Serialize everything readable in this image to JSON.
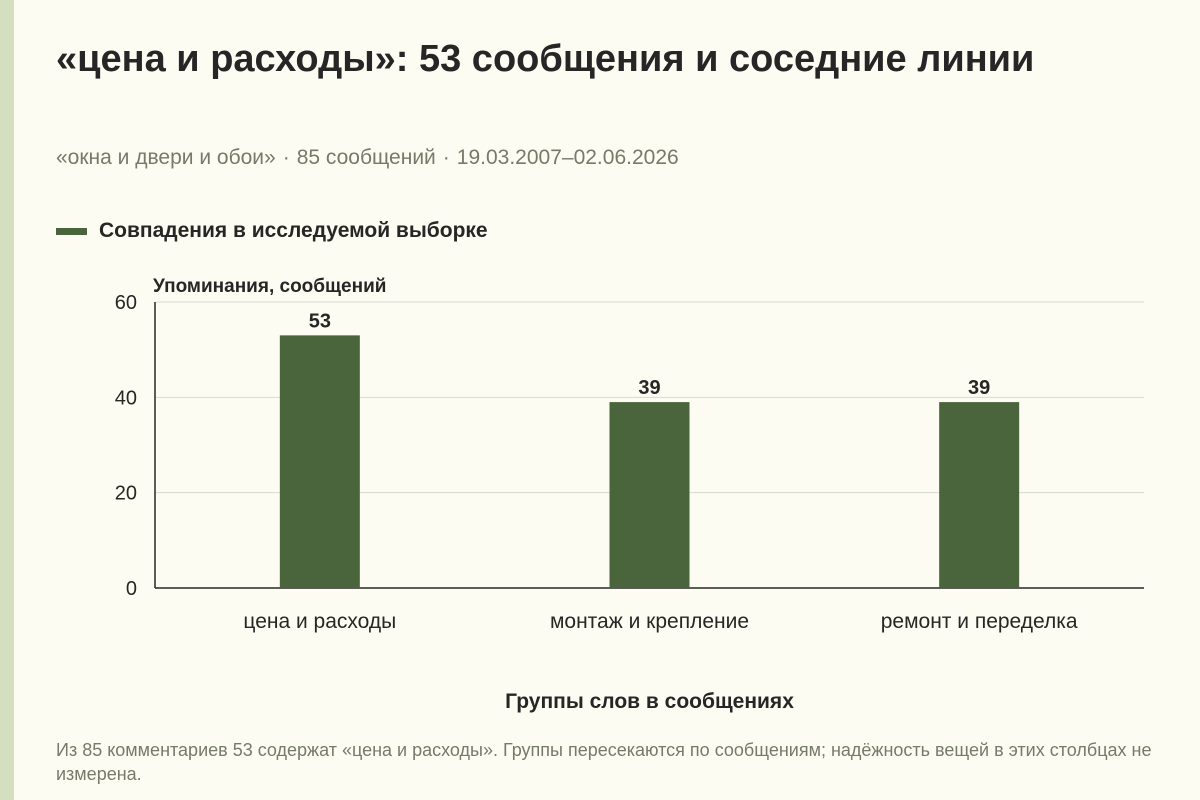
{
  "header": {
    "title": "«цена и расходы»: 53 сообщения и соседние линии",
    "subtitle_parts": [
      "«окна и двери и обои»",
      "85 сообщений",
      "19.03.2007–02.06.2026"
    ],
    "separator": "·"
  },
  "footer": {
    "note": "Из 85 комментариев 53 содержат «цена и расходы». Группы пересекаются по сообщениям; надёжность вещей в этих столбцах не измерена."
  },
  "colors": {
    "bar": "#4a643b",
    "grid": "#d9d9ce",
    "axis": "#262626",
    "background": "#fdfcf2",
    "side_accent": "#d3dfbf"
  },
  "chart_data": {
    "type": "bar",
    "title": "«цена и расходы»: 53 сообщения и соседние линии",
    "legend": [
      "Совпадения в исследуемой выборке"
    ],
    "legend_position": "top-left",
    "ylabel": "Упоминания, сообщений",
    "xlabel": "Группы слов в сообщениях",
    "ylim": [
      0,
      60
    ],
    "yticks": [
      0,
      20,
      40,
      60
    ],
    "grid": true,
    "categories": [
      "цена и расходы",
      "монтаж и крепление",
      "ремонт и переделка"
    ],
    "series": [
      {
        "name": "Совпадения в исследуемой выборке",
        "values": [
          53,
          39,
          39
        ]
      }
    ],
    "data_labels": [
      "53",
      "39",
      "39"
    ]
  }
}
